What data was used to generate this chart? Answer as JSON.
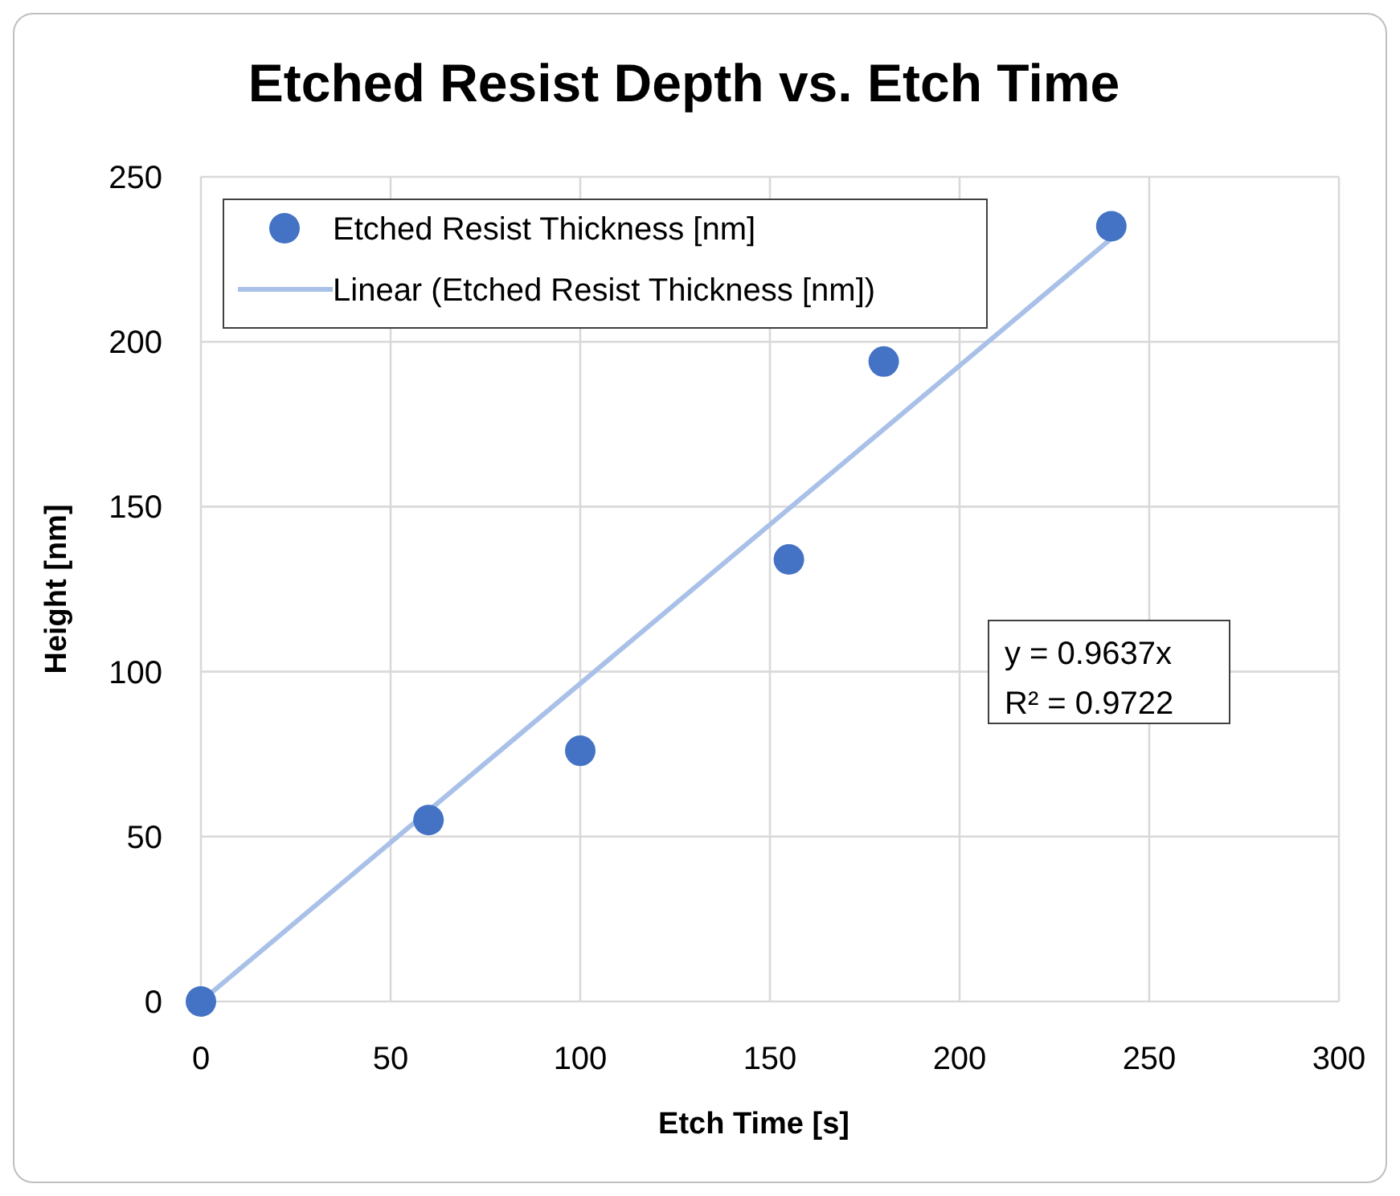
{
  "chart_data": {
    "type": "scatter",
    "title": "Etched Resist Depth vs. Etch Time",
    "xlabel": "Etch Time [s]",
    "ylabel": "Height [nm]",
    "xlim": [
      0,
      300
    ],
    "xticks": [
      0,
      50,
      100,
      150,
      200,
      250,
      300
    ],
    "ylim": [
      0,
      250
    ],
    "yticks": [
      0,
      50,
      100,
      150,
      200,
      250
    ],
    "grid": true,
    "legend": "top left",
    "series": [
      {
        "name": "Etched Resist Thickness [nm]",
        "marker": "circle",
        "color": "#4472c4",
        "x": [
          0,
          60,
          100,
          155,
          180,
          240
        ],
        "values": [
          0,
          55,
          76,
          134,
          194,
          235
        ]
      },
      {
        "name": "Linear (Etched Resist Thickness [nm])",
        "type": "line",
        "color": "#a9c0e8",
        "line_style": "solid",
        "x": [
          0,
          240
        ],
        "values": [
          0,
          231.3
        ]
      }
    ],
    "annotations": [
      "y = 0.9637x",
      "R² = 0.9722"
    ]
  }
}
